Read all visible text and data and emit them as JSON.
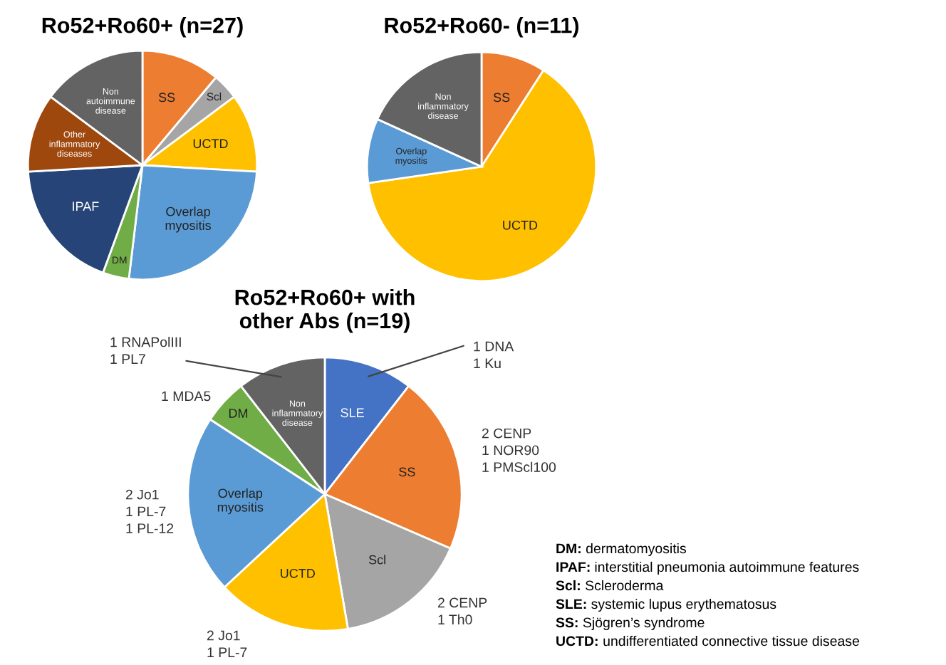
{
  "chart_data": [
    {
      "type": "pie",
      "title": "Ro52+Ro60+ (n=27)",
      "categories": [
        "SS",
        "Scl",
        "UCTD",
        "Overlap myositis",
        "DM",
        "IPAF",
        "Other inflammatory diseases",
        "Non autoimmune disease"
      ],
      "values": [
        11.1,
        3.7,
        11.1,
        26.0,
        3.7,
        18.5,
        11.1,
        14.8
      ],
      "colors": [
        "#ed7d31",
        "#a5a5a5",
        "#ffc000",
        "#5b9bd5",
        "#70ad47",
        "#264478",
        "#9e480e",
        "#636363"
      ]
    },
    {
      "type": "pie",
      "title": "Ro52+Ro60- (n=11)",
      "categories": [
        "SS",
        "UCTD",
        "Overlap myositis",
        "Non inflammatory disease"
      ],
      "values": [
        9.1,
        63.6,
        9.1,
        18.2
      ],
      "colors": [
        "#ed7d31",
        "#ffc000",
        "#5b9bd5",
        "#636363"
      ]
    },
    {
      "type": "pie",
      "title": "Ro52+Ro60+ with\nother Abs (n=19)",
      "categories": [
        "SLE",
        "SS",
        "Scl",
        "UCTD",
        "Overlap myositis",
        "DM",
        "Non inflammatory disease"
      ],
      "values": [
        10.5,
        21.0,
        15.8,
        15.8,
        21.1,
        5.3,
        10.5
      ],
      "colors": [
        "#4472c4",
        "#ed7d31",
        "#a5a5a5",
        "#ffc000",
        "#5b9bd5",
        "#70ad47",
        "#636363"
      ],
      "annotations": [
        "1 DNA\n1 Ku",
        "2 CENP\n1 NOR90\n1 PMScl100",
        "2 CENP\n1 Th0",
        "2 Jo1\n1 PL-7",
        "2 Jo1\n1 PL-7\n1 PL-12",
        "1 MDA5",
        "1 RNAPolIII\n1 PL7",
        "DM: dermatomyositis",
        "IPAF: interstitial pneumonia autoimmune features",
        "Scl: Scleroderma",
        "SLE: systemic lupus erythematosus",
        "SS: Sjögren’s syndrome",
        "UCTD: undifferentiated connective tissue disease"
      ]
    }
  ]
}
